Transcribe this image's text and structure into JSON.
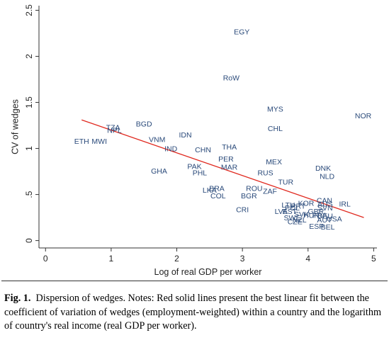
{
  "chart_data": {
    "type": "scatter",
    "xlabel": "Log of real GDP per worker",
    "ylabel": "CV of wedges",
    "xlim": [
      -0.1,
      5.05
    ],
    "ylim": [
      -0.08,
      2.55
    ],
    "xticks": [
      "0",
      "1",
      "2",
      "3",
      "4",
      "5"
    ],
    "yticks": [
      "0",
      ".5",
      "1",
      "1.5",
      "2",
      "2.5"
    ],
    "grid": false,
    "point_color": "#2a4a7a",
    "fit_line": {
      "color": "#e0281e",
      "description": "best linear fit",
      "x": [
        0.55,
        4.85
      ],
      "y": [
        1.31,
        0.25
      ]
    },
    "points": [
      {
        "label": "EGY",
        "x": 2.99,
        "y": 2.26
      },
      {
        "label": "RoW",
        "x": 2.83,
        "y": 1.76
      },
      {
        "label": "MYS",
        "x": 3.5,
        "y": 1.42
      },
      {
        "label": "NOR",
        "x": 4.84,
        "y": 1.35
      },
      {
        "label": "CHL",
        "x": 3.5,
        "y": 1.21
      },
      {
        "label": "BGD",
        "x": 1.5,
        "y": 1.26
      },
      {
        "label": "TZA",
        "x": 1.03,
        "y": 1.22
      },
      {
        "label": "NPL",
        "x": 1.05,
        "y": 1.19
      },
      {
        "label": "IDN",
        "x": 2.13,
        "y": 1.14
      },
      {
        "label": "ETH",
        "x": 0.55,
        "y": 1.07
      },
      {
        "label": "MWI",
        "x": 0.82,
        "y": 1.07
      },
      {
        "label": "VNM",
        "x": 1.7,
        "y": 1.09
      },
      {
        "label": "THA",
        "x": 2.8,
        "y": 1.01
      },
      {
        "label": "IND",
        "x": 1.91,
        "y": 0.99
      },
      {
        "label": "CHN",
        "x": 2.4,
        "y": 0.98
      },
      {
        "label": "PER",
        "x": 2.75,
        "y": 0.88
      },
      {
        "label": "MEX",
        "x": 3.48,
        "y": 0.85
      },
      {
        "label": "PAK",
        "x": 2.27,
        "y": 0.8
      },
      {
        "label": "MAR",
        "x": 2.8,
        "y": 0.79
      },
      {
        "label": "GHA",
        "x": 1.73,
        "y": 0.75
      },
      {
        "label": "PHL",
        "x": 2.35,
        "y": 0.73
      },
      {
        "label": "RUS",
        "x": 3.35,
        "y": 0.73
      },
      {
        "label": "DNK",
        "x": 4.23,
        "y": 0.78
      },
      {
        "label": "NLD",
        "x": 4.29,
        "y": 0.69
      },
      {
        "label": "TUR",
        "x": 3.66,
        "y": 0.63
      },
      {
        "label": "BRA",
        "x": 2.61,
        "y": 0.56
      },
      {
        "label": "LKA",
        "x": 2.5,
        "y": 0.54
      },
      {
        "label": "ROU",
        "x": 3.18,
        "y": 0.56
      },
      {
        "label": "ZAF",
        "x": 3.42,
        "y": 0.53
      },
      {
        "label": "COL",
        "x": 2.63,
        "y": 0.48
      },
      {
        "label": "BGR",
        "x": 3.1,
        "y": 0.48
      },
      {
        "label": "CAN",
        "x": 4.25,
        "y": 0.43
      },
      {
        "label": "KOR",
        "x": 3.97,
        "y": 0.4
      },
      {
        "label": "AUS",
        "x": 4.26,
        "y": 0.39
      },
      {
        "label": "IRL",
        "x": 4.56,
        "y": 0.39
      },
      {
        "label": "LTU",
        "x": 3.7,
        "y": 0.38
      },
      {
        "label": "PRT",
        "x": 3.85,
        "y": 0.37
      },
      {
        "label": "POL",
        "x": 3.76,
        "y": 0.35
      },
      {
        "label": "SVN",
        "x": 4.26,
        "y": 0.35
      },
      {
        "label": "CRI",
        "x": 3.0,
        "y": 0.33
      },
      {
        "label": "LVA",
        "x": 3.59,
        "y": 0.31
      },
      {
        "label": "EST",
        "x": 3.72,
        "y": 0.31
      },
      {
        "label": "GBR",
        "x": 4.12,
        "y": 0.31
      },
      {
        "label": "SVK",
        "x": 3.9,
        "y": 0.28
      },
      {
        "label": "HUN",
        "x": 4.05,
        "y": 0.27
      },
      {
        "label": "FRA",
        "x": 4.18,
        "y": 0.27
      },
      {
        "label": "DEU",
        "x": 4.26,
        "y": 0.26
      },
      {
        "label": "USA",
        "x": 4.4,
        "y": 0.23
      },
      {
        "label": "SWE",
        "x": 3.76,
        "y": 0.24
      },
      {
        "label": "NZL",
        "x": 3.87,
        "y": 0.22
      },
      {
        "label": "CZE",
        "x": 3.8,
        "y": 0.2
      },
      {
        "label": "AUT",
        "x": 4.25,
        "y": 0.22
      },
      {
        "label": "ESP",
        "x": 4.13,
        "y": 0.15
      },
      {
        "label": "BEL",
        "x": 4.3,
        "y": 0.14
      }
    ]
  },
  "caption": {
    "label": "Fig. 1.",
    "text": "Dispersion of wedges. Notes: Red solid lines present the best linear fit between the coefficient of variation of wedges (employment-weighted) within a country and the logarithm of country's real income (real GDP per worker)."
  }
}
